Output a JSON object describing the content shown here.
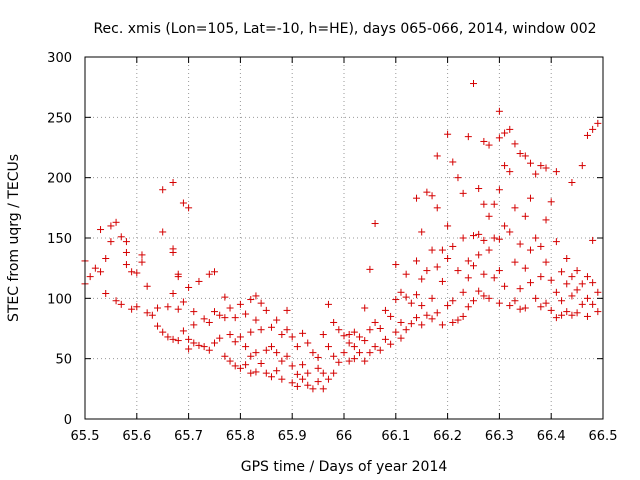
{
  "chart_data": {
    "type": "scatter",
    "title": "Rec. xmis (Lon=105, Lat=-10, h=HE), days 065-066, 2014, window 002",
    "xlabel": "GPS time / Days of year 2014",
    "ylabel": "STEC from uqrg / TECUs",
    "xlim": [
      65.5,
      66.5
    ],
    "ylim": [
      0,
      300
    ],
    "x_ticks": [
      "65.5",
      "65.6",
      "65.7",
      "65.8",
      "65.9",
      "66",
      "66.1",
      "66.2",
      "66.3",
      "66.4",
      "66.5"
    ],
    "y_ticks": [
      "0",
      "50",
      "100",
      "150",
      "200",
      "250",
      "300"
    ],
    "grid": true,
    "marker": "+",
    "color": "#d40000",
    "series": [
      {
        "name": "STEC",
        "points": [
          [
            65.5,
            131
          ],
          [
            65.5,
            112
          ],
          [
            65.51,
            118
          ],
          [
            65.52,
            125
          ],
          [
            65.53,
            122
          ],
          [
            65.53,
            157
          ],
          [
            65.54,
            133
          ],
          [
            65.54,
            104
          ],
          [
            65.55,
            160
          ],
          [
            65.55,
            147
          ],
          [
            65.56,
            163
          ],
          [
            65.56,
            98
          ],
          [
            65.57,
            151
          ],
          [
            65.57,
            95
          ],
          [
            65.58,
            147
          ],
          [
            65.58,
            138
          ],
          [
            65.58,
            128
          ],
          [
            65.59,
            122
          ],
          [
            65.59,
            91
          ],
          [
            65.6,
            121
          ],
          [
            65.6,
            93
          ],
          [
            65.61,
            136
          ],
          [
            65.61,
            130
          ],
          [
            65.62,
            110
          ],
          [
            65.62,
            88
          ],
          [
            65.63,
            86
          ],
          [
            65.64,
            77
          ],
          [
            65.64,
            92
          ],
          [
            65.65,
            72
          ],
          [
            65.65,
            190
          ],
          [
            65.65,
            155
          ],
          [
            65.66,
            93
          ],
          [
            65.66,
            68
          ],
          [
            65.67,
            196
          ],
          [
            65.67,
            141
          ],
          [
            65.67,
            138
          ],
          [
            65.67,
            104
          ],
          [
            65.67,
            66
          ],
          [
            65.68,
            120
          ],
          [
            65.68,
            118
          ],
          [
            65.68,
            91
          ],
          [
            65.68,
            65
          ],
          [
            65.69,
            179
          ],
          [
            65.69,
            97
          ],
          [
            65.69,
            73
          ],
          [
            65.7,
            175
          ],
          [
            65.7,
            109
          ],
          [
            65.7,
            66
          ],
          [
            65.7,
            58
          ],
          [
            65.71,
            89
          ],
          [
            65.71,
            78
          ],
          [
            65.71,
            63
          ],
          [
            65.72,
            114
          ],
          [
            65.72,
            61
          ],
          [
            65.73,
            83
          ],
          [
            65.73,
            60
          ],
          [
            65.74,
            120
          ],
          [
            65.74,
            80
          ],
          [
            65.74,
            57
          ],
          [
            65.75,
            122
          ],
          [
            65.75,
            89
          ],
          [
            65.75,
            63
          ],
          [
            65.76,
            86
          ],
          [
            65.76,
            67
          ],
          [
            65.77,
            101
          ],
          [
            65.77,
            84
          ],
          [
            65.77,
            52
          ],
          [
            65.78,
            92
          ],
          [
            65.78,
            70
          ],
          [
            65.78,
            48
          ],
          [
            65.79,
            84
          ],
          [
            65.79,
            64
          ],
          [
            65.79,
            44
          ],
          [
            65.8,
            95
          ],
          [
            65.8,
            68
          ],
          [
            65.8,
            42
          ],
          [
            65.81,
            87
          ],
          [
            65.81,
            60
          ],
          [
            65.81,
            45
          ],
          [
            65.82,
            99
          ],
          [
            65.82,
            72
          ],
          [
            65.82,
            52
          ],
          [
            65.82,
            38
          ],
          [
            65.83,
            102
          ],
          [
            65.83,
            82
          ],
          [
            65.83,
            55
          ],
          [
            65.83,
            39
          ],
          [
            65.84,
            96
          ],
          [
            65.84,
            74
          ],
          [
            65.84,
            46
          ],
          [
            65.85,
            90
          ],
          [
            65.85,
            57
          ],
          [
            65.85,
            38
          ],
          [
            65.86,
            76
          ],
          [
            65.86,
            60
          ],
          [
            65.86,
            35
          ],
          [
            65.87,
            82
          ],
          [
            65.87,
            55
          ],
          [
            65.87,
            40
          ],
          [
            65.88,
            70
          ],
          [
            65.88,
            48
          ],
          [
            65.88,
            33
          ],
          [
            65.89,
            90
          ],
          [
            65.89,
            74
          ],
          [
            65.89,
            52
          ],
          [
            65.9,
            68
          ],
          [
            65.9,
            44
          ],
          [
            65.9,
            30
          ],
          [
            65.91,
            60
          ],
          [
            65.91,
            37
          ],
          [
            65.91,
            27
          ],
          [
            65.92,
            71
          ],
          [
            65.92,
            45
          ],
          [
            65.92,
            33
          ],
          [
            65.93,
            63
          ],
          [
            65.93,
            38
          ],
          [
            65.93,
            28
          ],
          [
            65.94,
            55
          ],
          [
            65.94,
            25
          ],
          [
            65.95,
            51
          ],
          [
            65.95,
            42
          ],
          [
            65.95,
            31
          ],
          [
            65.96,
            70
          ],
          [
            65.96,
            38
          ],
          [
            65.96,
            25
          ],
          [
            65.97,
            95
          ],
          [
            65.97,
            60
          ],
          [
            65.97,
            33
          ],
          [
            65.98,
            80
          ],
          [
            65.98,
            52
          ],
          [
            65.98,
            38
          ],
          [
            65.99,
            74
          ],
          [
            65.99,
            47
          ],
          [
            66.0,
            69
          ],
          [
            66.0,
            55
          ],
          [
            66.01,
            70
          ],
          [
            66.01,
            63
          ],
          [
            66.01,
            48
          ],
          [
            66.02,
            72
          ],
          [
            66.02,
            60
          ],
          [
            66.02,
            50
          ],
          [
            66.03,
            68
          ],
          [
            66.03,
            55
          ],
          [
            66.04,
            92
          ],
          [
            66.04,
            65
          ],
          [
            66.04,
            48
          ],
          [
            66.05,
            124
          ],
          [
            66.05,
            74
          ],
          [
            66.05,
            55
          ],
          [
            66.06,
            162
          ],
          [
            66.06,
            80
          ],
          [
            66.06,
            60
          ],
          [
            66.07,
            75
          ],
          [
            66.07,
            57
          ],
          [
            66.08,
            90
          ],
          [
            66.08,
            66
          ],
          [
            66.09,
            85
          ],
          [
            66.09,
            62
          ],
          [
            66.1,
            128
          ],
          [
            66.1,
            99
          ],
          [
            66.1,
            72
          ],
          [
            66.11,
            105
          ],
          [
            66.11,
            80
          ],
          [
            66.11,
            67
          ],
          [
            66.12,
            120
          ],
          [
            66.12,
            101
          ],
          [
            66.12,
            74
          ],
          [
            66.13,
            96
          ],
          [
            66.13,
            79
          ],
          [
            66.14,
            183
          ],
          [
            66.14,
            131
          ],
          [
            66.14,
            103
          ],
          [
            66.14,
            84
          ],
          [
            66.15,
            155
          ],
          [
            66.15,
            116
          ],
          [
            66.15,
            94
          ],
          [
            66.15,
            78
          ],
          [
            66.16,
            188
          ],
          [
            66.16,
            123
          ],
          [
            66.16,
            86
          ],
          [
            66.17,
            185
          ],
          [
            66.17,
            140
          ],
          [
            66.17,
            100
          ],
          [
            66.17,
            83
          ],
          [
            66.18,
            218
          ],
          [
            66.18,
            175
          ],
          [
            66.18,
            126
          ],
          [
            66.18,
            88
          ],
          [
            66.19,
            140
          ],
          [
            66.19,
            114
          ],
          [
            66.19,
            78
          ],
          [
            66.2,
            236
          ],
          [
            66.2,
            160
          ],
          [
            66.2,
            133
          ],
          [
            66.2,
            94
          ],
          [
            66.21,
            213
          ],
          [
            66.21,
            143
          ],
          [
            66.21,
            98
          ],
          [
            66.21,
            80
          ],
          [
            66.22,
            200
          ],
          [
            66.22,
            123
          ],
          [
            66.22,
            82
          ],
          [
            66.23,
            187
          ],
          [
            66.23,
            150
          ],
          [
            66.23,
            105
          ],
          [
            66.23,
            85
          ],
          [
            66.24,
            234
          ],
          [
            66.24,
            131
          ],
          [
            66.24,
            117
          ],
          [
            66.24,
            93
          ],
          [
            66.25,
            278
          ],
          [
            66.25,
            152
          ],
          [
            66.25,
            127
          ],
          [
            66.25,
            98
          ],
          [
            66.26,
            191
          ],
          [
            66.26,
            153
          ],
          [
            66.26,
            136
          ],
          [
            66.26,
            106
          ],
          [
            66.27,
            230
          ],
          [
            66.27,
            178
          ],
          [
            66.27,
            148
          ],
          [
            66.27,
            120
          ],
          [
            66.27,
            102
          ],
          [
            66.28,
            227
          ],
          [
            66.28,
            168
          ],
          [
            66.28,
            140
          ],
          [
            66.28,
            100
          ],
          [
            66.29,
            178
          ],
          [
            66.29,
            150
          ],
          [
            66.29,
            117
          ],
          [
            66.3,
            255
          ],
          [
            66.3,
            233
          ],
          [
            66.3,
            190
          ],
          [
            66.3,
            149
          ],
          [
            66.3,
            123
          ],
          [
            66.3,
            96
          ],
          [
            66.31,
            237
          ],
          [
            66.31,
            210
          ],
          [
            66.31,
            160
          ],
          [
            66.31,
            110
          ],
          [
            66.32,
            240
          ],
          [
            66.32,
            205
          ],
          [
            66.32,
            155
          ],
          [
            66.32,
            94
          ],
          [
            66.33,
            228
          ],
          [
            66.33,
            175
          ],
          [
            66.33,
            130
          ],
          [
            66.33,
            98
          ],
          [
            66.34,
            220
          ],
          [
            66.34,
            145
          ],
          [
            66.34,
            108
          ],
          [
            66.34,
            91
          ],
          [
            66.35,
            218
          ],
          [
            66.35,
            168
          ],
          [
            66.35,
            125
          ],
          [
            66.35,
            92
          ],
          [
            66.36,
            212
          ],
          [
            66.36,
            183
          ],
          [
            66.36,
            140
          ],
          [
            66.36,
            113
          ],
          [
            66.37,
            203
          ],
          [
            66.37,
            150
          ],
          [
            66.37,
            100
          ],
          [
            66.38,
            210
          ],
          [
            66.38,
            143
          ],
          [
            66.38,
            118
          ],
          [
            66.38,
            93
          ],
          [
            66.39,
            208
          ],
          [
            66.39,
            165
          ],
          [
            66.39,
            130
          ],
          [
            66.39,
            96
          ],
          [
            66.4,
            180
          ],
          [
            66.4,
            115
          ],
          [
            66.4,
            90
          ],
          [
            66.41,
            205
          ],
          [
            66.41,
            147
          ],
          [
            66.41,
            105
          ],
          [
            66.41,
            84
          ],
          [
            66.42,
            122
          ],
          [
            66.42,
            98
          ],
          [
            66.42,
            86
          ],
          [
            66.43,
            133
          ],
          [
            66.43,
            112
          ],
          [
            66.43,
            89
          ],
          [
            66.44,
            196
          ],
          [
            66.44,
            118
          ],
          [
            66.44,
            102
          ],
          [
            66.44,
            86
          ],
          [
            66.45,
            123
          ],
          [
            66.45,
            107
          ],
          [
            66.45,
            88
          ],
          [
            66.46,
            210
          ],
          [
            66.46,
            112
          ],
          [
            66.46,
            95
          ],
          [
            66.47,
            235
          ],
          [
            66.47,
            118
          ],
          [
            66.47,
            100
          ],
          [
            66.47,
            85
          ],
          [
            66.48,
            240
          ],
          [
            66.48,
            148
          ],
          [
            66.48,
            113
          ],
          [
            66.48,
            95
          ],
          [
            66.49,
            245
          ],
          [
            66.49,
            105
          ],
          [
            66.49,
            89
          ]
        ]
      }
    ]
  }
}
